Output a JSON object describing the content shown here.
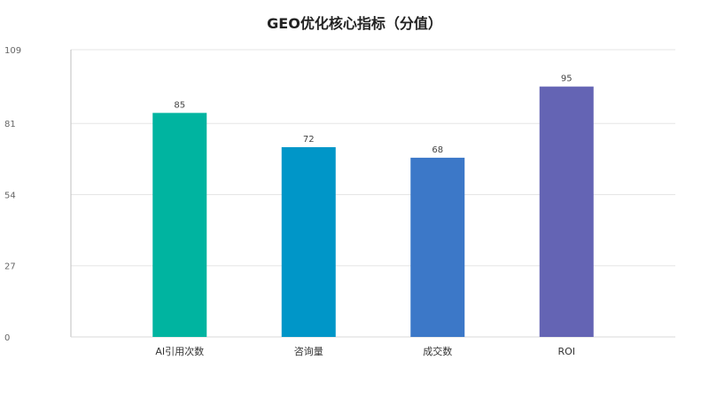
{
  "chart_data": {
    "type": "bar",
    "title": "GEO优化核心指标（分值）",
    "xlabel": "",
    "ylabel": "",
    "categories": [
      "AI引用次数",
      "咨询量",
      "成交数",
      "ROI"
    ],
    "values": [
      85,
      72,
      68,
      95
    ],
    "data_labels": [
      "85",
      "72",
      "68",
      "95"
    ],
    "colors": [
      "#00b4a0",
      "#0096c8",
      "#3c78c8",
      "#6464b4"
    ],
    "ylim": [
      0,
      109
    ],
    "yticks": [
      0,
      27,
      54,
      81,
      109
    ],
    "ytick_labels": [
      "0",
      "27",
      "54",
      "81",
      "109"
    ],
    "grid": true,
    "legend": "none"
  }
}
